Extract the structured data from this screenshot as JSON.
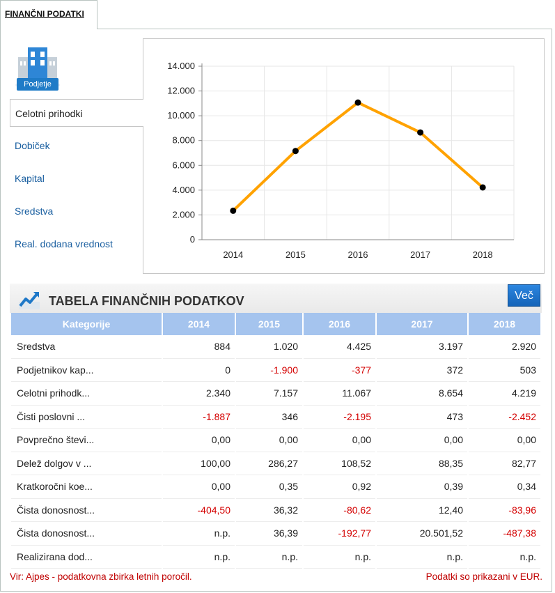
{
  "tab": {
    "label": "FINANČNI PODATKI"
  },
  "logo": {
    "label": "Podjetje",
    "icon": "building-icon"
  },
  "side_nav": {
    "items": [
      {
        "label": "Celotni prihodki",
        "active": true
      },
      {
        "label": "Dobiček",
        "active": false
      },
      {
        "label": "Kapital",
        "active": false
      },
      {
        "label": "Sredstva",
        "active": false
      },
      {
        "label": "Real. dodana vrednost",
        "active": false
      }
    ]
  },
  "chart_data": {
    "type": "line",
    "categories": [
      "2014",
      "2015",
      "2016",
      "2017",
      "2018"
    ],
    "series": [
      {
        "values": [
          2340,
          7157,
          11067,
          8654,
          4219
        ],
        "color": "#ffa200"
      }
    ],
    "ylim": [
      0,
      14000
    ],
    "yticks": [
      "0",
      "2.000",
      "4.000",
      "6.000",
      "8.000",
      "10.000",
      "12.000",
      "14.000"
    ],
    "grid": true,
    "title": "",
    "xlabel": "",
    "ylabel": ""
  },
  "section": {
    "title": "TABELA FINANČNIH PODATKOV",
    "icon": "trend-chart-icon",
    "more_label": "Več"
  },
  "table": {
    "headers": [
      "Kategorije",
      "2014",
      "2015",
      "2016",
      "2017",
      "2018"
    ],
    "rows": [
      {
        "label": "Sredstva",
        "values": [
          "884",
          "1.020",
          "4.425",
          "3.197",
          "2.920"
        ]
      },
      {
        "label": "Podjetnikov kap...",
        "values": [
          "0",
          "-1.900",
          "-377",
          "372",
          "503"
        ]
      },
      {
        "label": "Celotni prihodk...",
        "values": [
          "2.340",
          "7.157",
          "11.067",
          "8.654",
          "4.219"
        ]
      },
      {
        "label": "Čisti poslovni ...",
        "values": [
          "-1.887",
          "346",
          "-2.195",
          "473",
          "-2.452"
        ]
      },
      {
        "label": "Povprečno števi...",
        "values": [
          "0,00",
          "0,00",
          "0,00",
          "0,00",
          "0,00"
        ]
      },
      {
        "label": "Delež dolgov v ...",
        "values": [
          "100,00",
          "286,27",
          "108,52",
          "88,35",
          "82,77"
        ]
      },
      {
        "label": "Kratkoročni koe...",
        "values": [
          "0,00",
          "0,35",
          "0,92",
          "0,39",
          "0,34"
        ]
      },
      {
        "label": "Čista donosnost...",
        "values": [
          "-404,50",
          "36,32",
          "-80,62",
          "12,40",
          "-83,96"
        ]
      },
      {
        "label": "Čista donosnost...",
        "values": [
          "n.p.",
          "36,39",
          "-192,77",
          "20.501,52",
          "-487,38"
        ]
      },
      {
        "label": "Realizirana dod...",
        "values": [
          "n.p.",
          "n.p.",
          "n.p.",
          "n.p.",
          "n.p."
        ]
      }
    ]
  },
  "footer": {
    "source": "Vir: Ajpes - podatkovna zbirka letnih poročil.",
    "currency_note": "Podatki so prikazani v EUR."
  },
  "colors": {
    "link": "#1a5fa0",
    "header_bg": "#a5c4ee",
    "negative": "#d40000",
    "line": "#ffa200",
    "button": "#1f72c9"
  }
}
